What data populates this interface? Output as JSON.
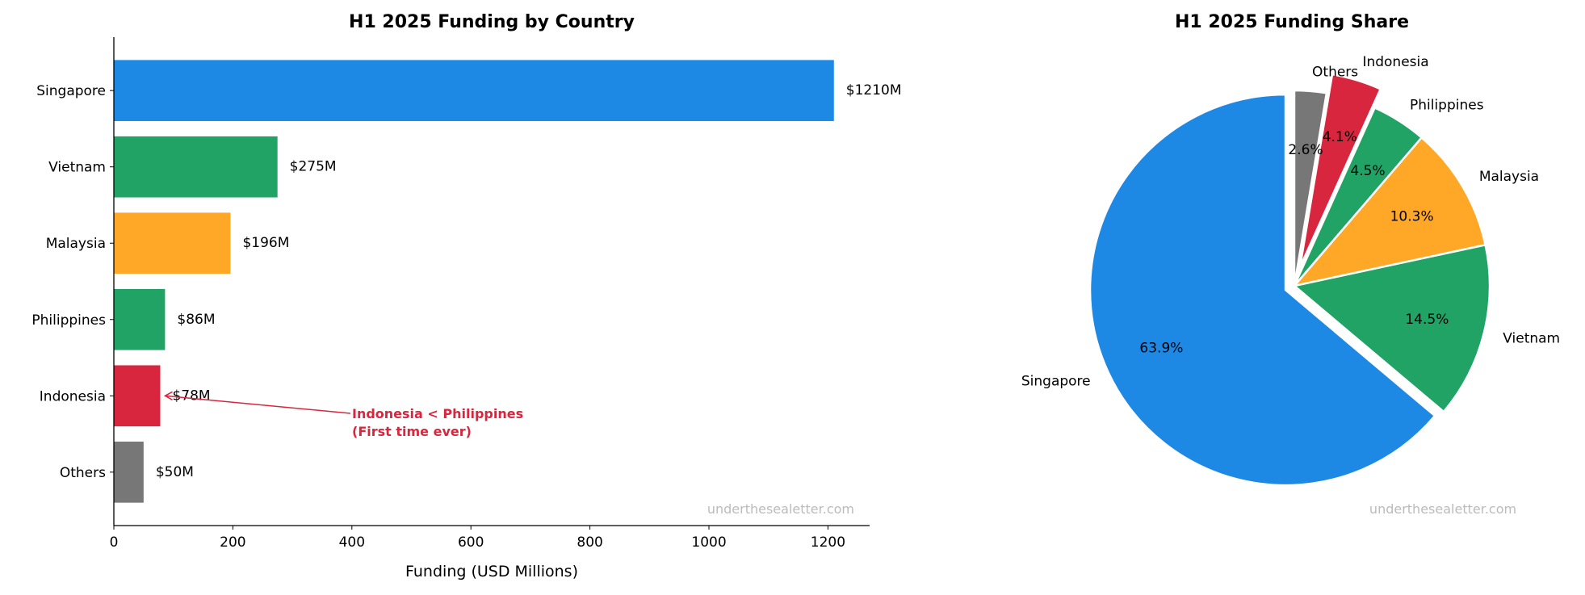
{
  "chart_data": [
    {
      "type": "bar",
      "orientation": "horizontal",
      "title": "H1 2025 Funding by Country",
      "xlabel": "Funding (USD Millions)",
      "ylabel": "",
      "categories": [
        "Singapore",
        "Vietnam",
        "Malaysia",
        "Philippines",
        "Indonesia",
        "Others"
      ],
      "values": [
        1210,
        275,
        196,
        86,
        78,
        50
      ],
      "data_labels": [
        "$1210M",
        "$275M",
        "$196M",
        "$86M",
        "$78M",
        "$50M"
      ],
      "colors": [
        "#1E88E5",
        "#21A366",
        "#FFA726",
        "#21A366",
        "#D7263D",
        "#777777"
      ],
      "xlim": [
        0,
        1270
      ],
      "xticks": [
        0,
        200,
        400,
        600,
        800,
        1000,
        1200
      ],
      "grid": false,
      "annotation": {
        "lines": [
          "Indonesia < Philippines",
          "(First time ever)"
        ],
        "target_category": "Indonesia",
        "target_value": 78,
        "text_value": 400,
        "color": "#D7263D"
      },
      "watermark": "underthesealetter.com"
    },
    {
      "type": "pie",
      "title": "H1 2025 Funding Share",
      "labels": [
        "Singapore",
        "Vietnam",
        "Malaysia",
        "Philippines",
        "Indonesia",
        "Others"
      ],
      "values": [
        1210,
        275,
        196,
        86,
        78,
        50
      ],
      "percent_labels": [
        "63.9%",
        "14.5%",
        "10.3%",
        "4.5%",
        "4.1%",
        "2.6%"
      ],
      "colors": [
        "#1E88E5",
        "#21A366",
        "#FFA726",
        "#21A366",
        "#D7263D",
        "#777777"
      ],
      "explode": [
        0.05,
        0,
        0,
        0,
        0.1,
        0
      ],
      "start_angle": 90,
      "direction": "counterclockwise",
      "watermark": "underthesealetter.com"
    }
  ]
}
